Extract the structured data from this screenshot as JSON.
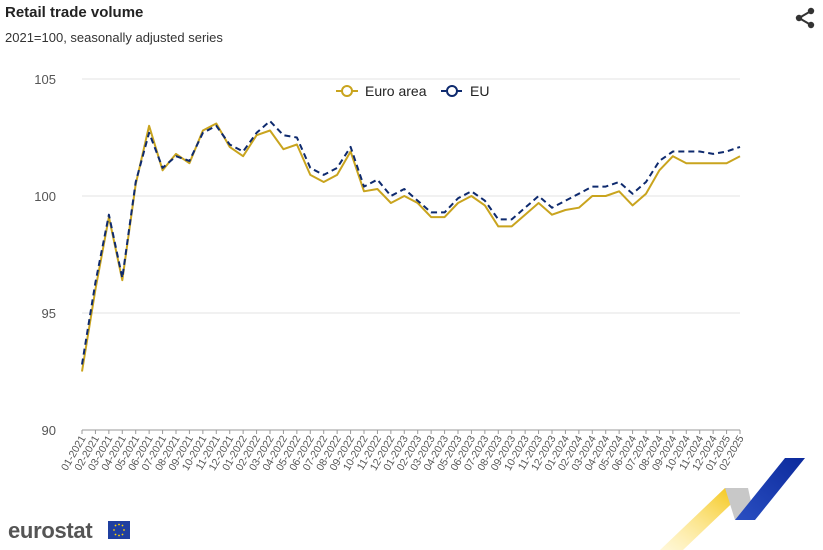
{
  "header": {
    "title": "Retail trade volume",
    "subtitle": "2021=100, seasonally adjusted series",
    "share_icon": "share-icon"
  },
  "logo": {
    "text": "eurostat",
    "flag_icon": "eu-flag-icon"
  },
  "chart_data": {
    "type": "line",
    "title": "Retail trade volume",
    "subtitle": "2021=100, seasonally adjusted series",
    "xlabel": "",
    "ylabel": "",
    "ylim": [
      90,
      105
    ],
    "yticks": [
      90,
      95,
      100,
      105
    ],
    "grid": true,
    "legend": "top-center",
    "x": [
      "01-2021",
      "02-2021",
      "03-2021",
      "04-2021",
      "05-2021",
      "06-2021",
      "07-2021",
      "08-2021",
      "09-2021",
      "10-2021",
      "11-2021",
      "12-2021",
      "01-2022",
      "02-2022",
      "03-2022",
      "04-2022",
      "05-2022",
      "06-2022",
      "07-2022",
      "08-2022",
      "09-2022",
      "10-2022",
      "11-2022",
      "12-2022",
      "01-2023",
      "02-2023",
      "03-2023",
      "04-2023",
      "05-2023",
      "06-2023",
      "07-2023",
      "08-2023",
      "09-2023",
      "10-2023",
      "11-2023",
      "12-2023",
      "01-2024",
      "02-2024",
      "03-2024",
      "04-2024",
      "05-2024",
      "06-2024",
      "07-2024",
      "08-2024",
      "09-2024",
      "10-2024",
      "11-2024",
      "12-2024",
      "01-2025",
      "02-2025"
    ],
    "series": [
      {
        "name": "Euro area",
        "color": "#c9a41e",
        "dash": "solid",
        "values": [
          92.5,
          96.0,
          99.1,
          96.4,
          100.5,
          103.0,
          101.1,
          101.8,
          101.4,
          102.8,
          103.1,
          102.1,
          101.7,
          102.6,
          102.8,
          102.0,
          102.2,
          100.9,
          100.6,
          100.9,
          101.9,
          100.2,
          100.3,
          99.7,
          100.0,
          99.7,
          99.1,
          99.1,
          99.7,
          100.0,
          99.6,
          98.7,
          98.7,
          99.2,
          99.7,
          99.2,
          99.4,
          99.5,
          100.0,
          100.0,
          100.2,
          99.6,
          100.1,
          101.1,
          101.7,
          101.4,
          101.4,
          101.4,
          101.4,
          101.7
        ]
      },
      {
        "name": "EU",
        "color": "#0e2a6e",
        "dash": "dashed",
        "values": [
          92.8,
          96.3,
          99.2,
          96.5,
          100.6,
          102.7,
          101.2,
          101.7,
          101.5,
          102.7,
          103.0,
          102.2,
          101.9,
          102.7,
          103.2,
          102.6,
          102.5,
          101.2,
          100.9,
          101.2,
          102.1,
          100.4,
          100.7,
          100.0,
          100.3,
          99.8,
          99.3,
          99.3,
          99.9,
          100.2,
          99.8,
          99.0,
          99.0,
          99.5,
          100.0,
          99.5,
          99.8,
          100.1,
          100.4,
          100.4,
          100.6,
          100.1,
          100.6,
          101.5,
          101.9,
          101.9,
          101.9,
          101.8,
          101.9,
          102.1
        ]
      }
    ]
  }
}
